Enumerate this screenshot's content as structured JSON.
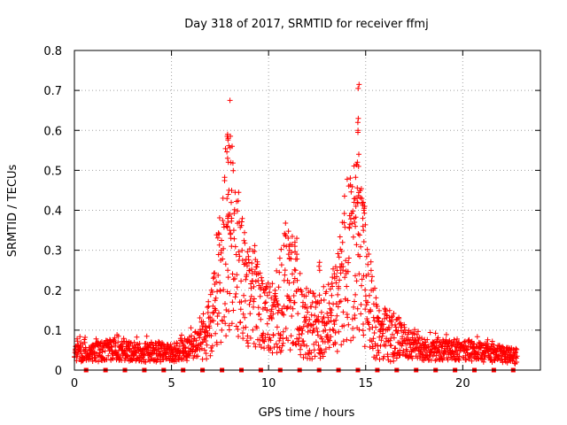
{
  "chart_data": {
    "type": "scatter",
    "title": "Day 318 of 2017, SRMTID for receiver ffmj",
    "xlabel": "GPS time / hours",
    "ylabel": "SRMTID / TECUs",
    "xlim": [
      0,
      24
    ],
    "ylim": [
      0,
      0.8
    ],
    "xticks": [
      0,
      5,
      10,
      15,
      20
    ],
    "yticks": [
      0,
      0.1,
      0.2,
      0.3,
      0.4,
      0.5,
      0.6,
      0.7,
      0.8
    ],
    "xtick_labels": [
      "0",
      "5",
      "10",
      "15",
      "20"
    ],
    "ytick_labels": [
      "0",
      "0.1",
      "0.2",
      "0.3",
      "0.4",
      "0.5",
      "0.6",
      "0.7",
      "0.8"
    ],
    "grid": true,
    "series": [
      {
        "name": "SRMTID",
        "marker": "plus",
        "color": "#ff0000",
        "profile": [
          [
            0.0,
            0.045
          ],
          [
            1.0,
            0.045
          ],
          [
            2.0,
            0.05
          ],
          [
            3.0,
            0.045
          ],
          [
            4.0,
            0.045
          ],
          [
            5.0,
            0.045
          ],
          [
            5.8,
            0.05
          ],
          [
            6.5,
            0.07
          ],
          [
            7.0,
            0.11
          ],
          [
            7.4,
            0.22
          ],
          [
            7.8,
            0.3
          ],
          [
            8.0,
            0.36
          ],
          [
            8.3,
            0.27
          ],
          [
            8.8,
            0.2
          ],
          [
            9.3,
            0.17
          ],
          [
            9.8,
            0.12
          ],
          [
            10.3,
            0.14
          ],
          [
            10.8,
            0.2
          ],
          [
            11.3,
            0.18
          ],
          [
            11.8,
            0.12
          ],
          [
            12.4,
            0.11
          ],
          [
            13.0,
            0.12
          ],
          [
            13.5,
            0.16
          ],
          [
            14.0,
            0.26
          ],
          [
            14.4,
            0.3
          ],
          [
            14.7,
            0.3
          ],
          [
            15.0,
            0.21
          ],
          [
            15.5,
            0.11
          ],
          [
            16.0,
            0.09
          ],
          [
            16.5,
            0.08
          ],
          [
            17.0,
            0.07
          ],
          [
            17.5,
            0.06
          ],
          [
            18.0,
            0.05
          ],
          [
            19.0,
            0.05
          ],
          [
            20.0,
            0.05
          ],
          [
            21.0,
            0.045
          ],
          [
            22.0,
            0.04
          ],
          [
            22.7,
            0.035
          ]
        ],
        "peaks": [
          {
            "x": 7.9,
            "values": [
              0.59,
              0.585,
              0.58,
              0.53,
              0.52,
              0.45,
              0.44,
              0.39,
              0.385,
              0.38,
              0.37,
              0.36
            ]
          },
          {
            "x": 8.05,
            "values": [
              0.39,
              0.38,
              0.35,
              0.34,
              0.33,
              0.31
            ]
          },
          {
            "x": 14.6,
            "values": [
              0.715,
              0.705,
              0.63,
              0.62,
              0.6,
              0.595,
              0.54,
              0.52,
              0.51,
              0.43,
              0.42
            ]
          },
          {
            "x": 14.45,
            "values": [
              0.43,
              0.42,
              0.41,
              0.38,
              0.37,
              0.36
            ]
          },
          {
            "x": 14.9,
            "values": [
              0.42,
              0.41,
              0.4,
              0.36,
              0.35
            ]
          },
          {
            "x": 11.4,
            "values": [
              0.33,
              0.32,
              0.31,
              0.29
            ]
          },
          {
            "x": 11.05,
            "values": [
              0.31,
              0.3,
              0.29,
              0.28
            ]
          },
          {
            "x": 12.6,
            "values": [
              0.27,
              0.26,
              0.25
            ]
          }
        ],
        "baseline_markers_x": [
          0.6,
          1.6,
          2.6,
          3.6,
          4.6,
          5.6,
          6.6,
          7.6,
          8.6,
          9.6,
          10.6,
          11.6,
          12.6,
          13.6,
          14.6,
          15.6,
          16.6,
          17.6,
          18.6,
          19.6,
          20.6,
          21.6,
          22.6
        ],
        "x_range": [
          0.0,
          22.8
        ],
        "point_count": 1800
      }
    ]
  }
}
